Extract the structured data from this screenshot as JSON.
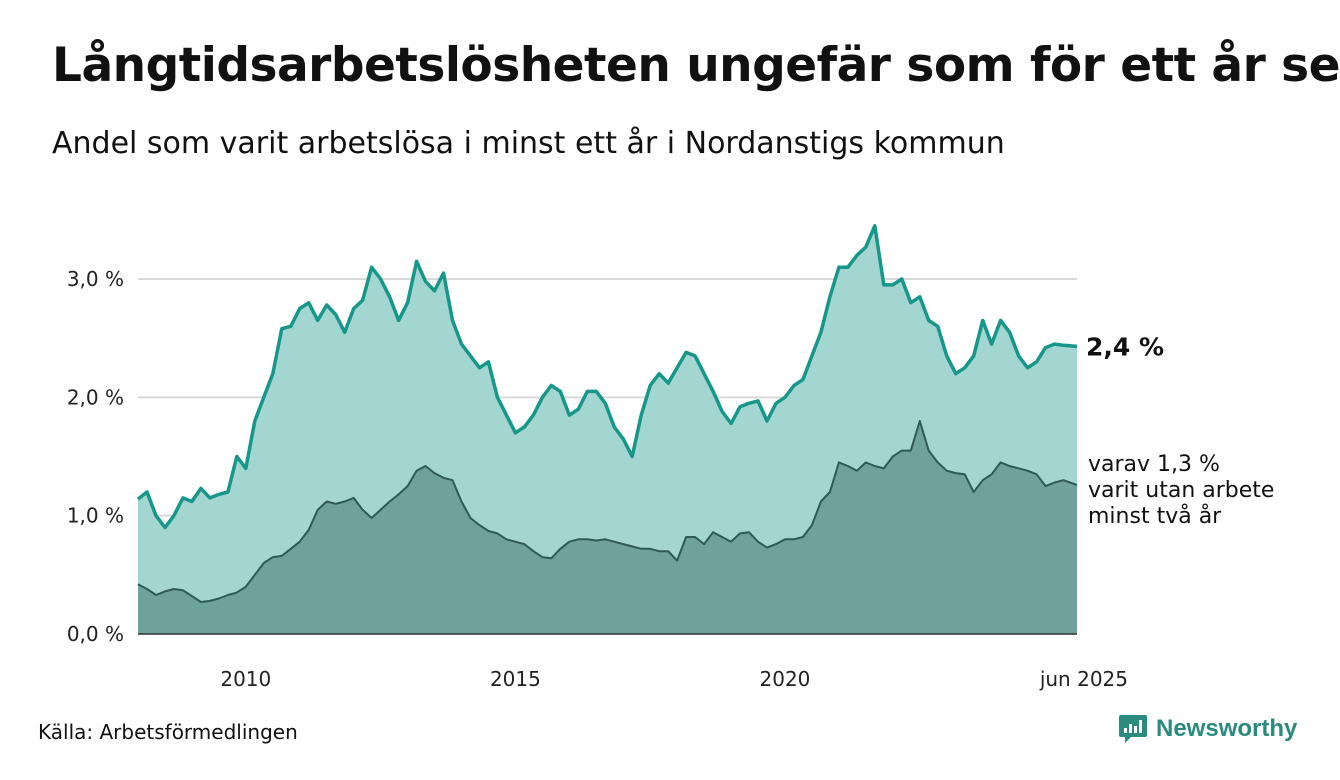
{
  "title": "Långtidsarbetslösheten ungefär som för ett år sen",
  "subtitle": "Andel som varit arbetslösa i minst ett år i Nordanstigs kommun",
  "source": "Källa: Arbetsförmedlingen",
  "brand": {
    "name": "Newsworthy",
    "icon": "newsworthy-logo-icon"
  },
  "colors": {
    "top_line": "#17968a",
    "top_fill": "#a4d6d1",
    "bottom_line": "#2e5b55",
    "bottom_fill": "#6fa29a",
    "grid": "#d9d9d9"
  },
  "chart_data": {
    "type": "area",
    "ylim": [
      0,
      3.6
    ],
    "y_ticks": [
      {
        "value": 0,
        "label": "0,0 %"
      },
      {
        "value": 1,
        "label": "1,0 %"
      },
      {
        "value": 2,
        "label": "2,0 %"
      },
      {
        "value": 3,
        "label": "3,0 %"
      }
    ],
    "x_range": [
      "2008-01",
      "2025-06"
    ],
    "x_ticks": [
      {
        "date": "2010-01",
        "label": "2010"
      },
      {
        "date": "2015-01",
        "label": "2015"
      },
      {
        "date": "2020-01",
        "label": "2020"
      },
      {
        "date": "2025-06",
        "label": "jun 2025"
      }
    ],
    "annotations": {
      "top_end": "2,4 %",
      "bottom_end": [
        "varav 1,3 %",
        "varit utan arbete",
        "minst två år"
      ]
    },
    "series": [
      {
        "points": [
          [
            "2008-01",
            1.14
          ],
          [
            "2008-03",
            1.2
          ],
          [
            "2008-05",
            1.0
          ],
          [
            "2008-07",
            0.9
          ],
          [
            "2008-09",
            1.0
          ],
          [
            "2008-11",
            1.15
          ],
          [
            "2009-01",
            1.12
          ],
          [
            "2009-03",
            1.23
          ],
          [
            "2009-05",
            1.15
          ],
          [
            "2009-07",
            1.18
          ],
          [
            "2009-09",
            1.2
          ],
          [
            "2009-11",
            1.5
          ],
          [
            "2010-01",
            1.4
          ],
          [
            "2010-03",
            1.8
          ],
          [
            "2010-05",
            2.0
          ],
          [
            "2010-07",
            2.2
          ],
          [
            "2010-09",
            2.58
          ],
          [
            "2010-11",
            2.6
          ],
          [
            "2011-01",
            2.75
          ],
          [
            "2011-03",
            2.8
          ],
          [
            "2011-05",
            2.65
          ],
          [
            "2011-07",
            2.78
          ],
          [
            "2011-09",
            2.7
          ],
          [
            "2011-11",
            2.55
          ],
          [
            "2012-01",
            2.75
          ],
          [
            "2012-03",
            2.82
          ],
          [
            "2012-05",
            3.1
          ],
          [
            "2012-07",
            3.0
          ],
          [
            "2012-09",
            2.85
          ],
          [
            "2012-11",
            2.65
          ],
          [
            "2013-01",
            2.8
          ],
          [
            "2013-03",
            3.15
          ],
          [
            "2013-05",
            2.98
          ],
          [
            "2013-07",
            2.9
          ],
          [
            "2013-09",
            3.05
          ],
          [
            "2013-11",
            2.65
          ],
          [
            "2014-01",
            2.45
          ],
          [
            "2014-03",
            2.35
          ],
          [
            "2014-05",
            2.25
          ],
          [
            "2014-07",
            2.3
          ],
          [
            "2014-09",
            2.0
          ],
          [
            "2014-11",
            1.85
          ],
          [
            "2015-01",
            1.7
          ],
          [
            "2015-03",
            1.75
          ],
          [
            "2015-05",
            1.85
          ],
          [
            "2015-07",
            2.0
          ],
          [
            "2015-09",
            2.1
          ],
          [
            "2015-11",
            2.05
          ],
          [
            "2016-01",
            1.85
          ],
          [
            "2016-03",
            1.9
          ],
          [
            "2016-05",
            2.05
          ],
          [
            "2016-07",
            2.05
          ],
          [
            "2016-09",
            1.95
          ],
          [
            "2016-11",
            1.75
          ],
          [
            "2017-01",
            1.65
          ],
          [
            "2017-03",
            1.5
          ],
          [
            "2017-05",
            1.85
          ],
          [
            "2017-07",
            2.1
          ],
          [
            "2017-09",
            2.2
          ],
          [
            "2017-11",
            2.12
          ],
          [
            "2018-01",
            2.25
          ],
          [
            "2018-03",
            2.38
          ],
          [
            "2018-05",
            2.35
          ],
          [
            "2018-07",
            2.2
          ],
          [
            "2018-09",
            2.05
          ],
          [
            "2018-11",
            1.88
          ],
          [
            "2019-01",
            1.78
          ],
          [
            "2019-03",
            1.92
          ],
          [
            "2019-05",
            1.95
          ],
          [
            "2019-07",
            1.97
          ],
          [
            "2019-09",
            1.8
          ],
          [
            "2019-11",
            1.95
          ],
          [
            "2020-01",
            2.0
          ],
          [
            "2020-03",
            2.1
          ],
          [
            "2020-05",
            2.15
          ],
          [
            "2020-07",
            2.35
          ],
          [
            "2020-09",
            2.55
          ],
          [
            "2020-11",
            2.85
          ],
          [
            "2021-01",
            3.1
          ],
          [
            "2021-03",
            3.1
          ],
          [
            "2021-05",
            3.2
          ],
          [
            "2021-07",
            3.27
          ],
          [
            "2021-09",
            3.45
          ],
          [
            "2021-11",
            2.95
          ],
          [
            "2022-01",
            2.95
          ],
          [
            "2022-03",
            3.0
          ],
          [
            "2022-05",
            2.8
          ],
          [
            "2022-07",
            2.85
          ],
          [
            "2022-09",
            2.65
          ],
          [
            "2022-11",
            2.6
          ],
          [
            "2023-01",
            2.35
          ],
          [
            "2023-03",
            2.2
          ],
          [
            "2023-05",
            2.25
          ],
          [
            "2023-07",
            2.35
          ],
          [
            "2023-09",
            2.65
          ],
          [
            "2023-11",
            2.45
          ],
          [
            "2024-01",
            2.65
          ],
          [
            "2024-03",
            2.55
          ],
          [
            "2024-05",
            2.35
          ],
          [
            "2024-07",
            2.25
          ],
          [
            "2024-09",
            2.3
          ],
          [
            "2024-11",
            2.42
          ],
          [
            "2025-01",
            2.45
          ],
          [
            "2025-03",
            2.44
          ],
          [
            "2025-06",
            2.43
          ]
        ]
      },
      {
        "points": [
          [
            "2008-01",
            0.42
          ],
          [
            "2008-03",
            0.38
          ],
          [
            "2008-05",
            0.33
          ],
          [
            "2008-07",
            0.36
          ],
          [
            "2008-09",
            0.38
          ],
          [
            "2008-11",
            0.37
          ],
          [
            "2009-01",
            0.32
          ],
          [
            "2009-03",
            0.27
          ],
          [
            "2009-05",
            0.28
          ],
          [
            "2009-07",
            0.3
          ],
          [
            "2009-09",
            0.33
          ],
          [
            "2009-11",
            0.35
          ],
          [
            "2010-01",
            0.4
          ],
          [
            "2010-03",
            0.5
          ],
          [
            "2010-05",
            0.6
          ],
          [
            "2010-07",
            0.65
          ],
          [
            "2010-09",
            0.66
          ],
          [
            "2010-11",
            0.72
          ],
          [
            "2011-01",
            0.78
          ],
          [
            "2011-03",
            0.88
          ],
          [
            "2011-05",
            1.05
          ],
          [
            "2011-07",
            1.12
          ],
          [
            "2011-09",
            1.1
          ],
          [
            "2011-11",
            1.12
          ],
          [
            "2012-01",
            1.15
          ],
          [
            "2012-03",
            1.05
          ],
          [
            "2012-05",
            0.98
          ],
          [
            "2012-07",
            1.05
          ],
          [
            "2012-09",
            1.12
          ],
          [
            "2012-11",
            1.18
          ],
          [
            "2013-01",
            1.25
          ],
          [
            "2013-03",
            1.38
          ],
          [
            "2013-05",
            1.42
          ],
          [
            "2013-07",
            1.36
          ],
          [
            "2013-09",
            1.32
          ],
          [
            "2013-11",
            1.3
          ],
          [
            "2014-01",
            1.12
          ],
          [
            "2014-03",
            0.98
          ],
          [
            "2014-05",
            0.92
          ],
          [
            "2014-07",
            0.87
          ],
          [
            "2014-09",
            0.85
          ],
          [
            "2014-11",
            0.8
          ],
          [
            "2015-01",
            0.78
          ],
          [
            "2015-03",
            0.76
          ],
          [
            "2015-05",
            0.7
          ],
          [
            "2015-07",
            0.65
          ],
          [
            "2015-09",
            0.64
          ],
          [
            "2015-11",
            0.72
          ],
          [
            "2016-01",
            0.78
          ],
          [
            "2016-03",
            0.8
          ],
          [
            "2016-05",
            0.8
          ],
          [
            "2016-07",
            0.79
          ],
          [
            "2016-09",
            0.8
          ],
          [
            "2016-11",
            0.78
          ],
          [
            "2017-01",
            0.76
          ],
          [
            "2017-03",
            0.74
          ],
          [
            "2017-05",
            0.72
          ],
          [
            "2017-07",
            0.72
          ],
          [
            "2017-09",
            0.7
          ],
          [
            "2017-11",
            0.7
          ],
          [
            "2018-01",
            0.62
          ],
          [
            "2018-03",
            0.82
          ],
          [
            "2018-05",
            0.82
          ],
          [
            "2018-07",
            0.76
          ],
          [
            "2018-09",
            0.86
          ],
          [
            "2018-11",
            0.82
          ],
          [
            "2019-01",
            0.78
          ],
          [
            "2019-03",
            0.85
          ],
          [
            "2019-05",
            0.86
          ],
          [
            "2019-07",
            0.78
          ],
          [
            "2019-09",
            0.73
          ],
          [
            "2019-11",
            0.76
          ],
          [
            "2020-01",
            0.8
          ],
          [
            "2020-03",
            0.8
          ],
          [
            "2020-05",
            0.82
          ],
          [
            "2020-07",
            0.92
          ],
          [
            "2020-09",
            1.12
          ],
          [
            "2020-11",
            1.2
          ],
          [
            "2021-01",
            1.45
          ],
          [
            "2021-03",
            1.42
          ],
          [
            "2021-05",
            1.38
          ],
          [
            "2021-07",
            1.45
          ],
          [
            "2021-09",
            1.42
          ],
          [
            "2021-11",
            1.4
          ],
          [
            "2022-01",
            1.5
          ],
          [
            "2022-03",
            1.55
          ],
          [
            "2022-05",
            1.55
          ],
          [
            "2022-07",
            1.8
          ],
          [
            "2022-09",
            1.55
          ],
          [
            "2022-11",
            1.45
          ],
          [
            "2023-01",
            1.38
          ],
          [
            "2023-03",
            1.36
          ],
          [
            "2023-05",
            1.35
          ],
          [
            "2023-07",
            1.2
          ],
          [
            "2023-09",
            1.3
          ],
          [
            "2023-11",
            1.35
          ],
          [
            "2024-01",
            1.45
          ],
          [
            "2024-03",
            1.42
          ],
          [
            "2024-05",
            1.4
          ],
          [
            "2024-07",
            1.38
          ],
          [
            "2024-09",
            1.35
          ],
          [
            "2024-11",
            1.25
          ],
          [
            "2025-01",
            1.28
          ],
          [
            "2025-03",
            1.3
          ],
          [
            "2025-06",
            1.26
          ]
        ]
      }
    ]
  }
}
